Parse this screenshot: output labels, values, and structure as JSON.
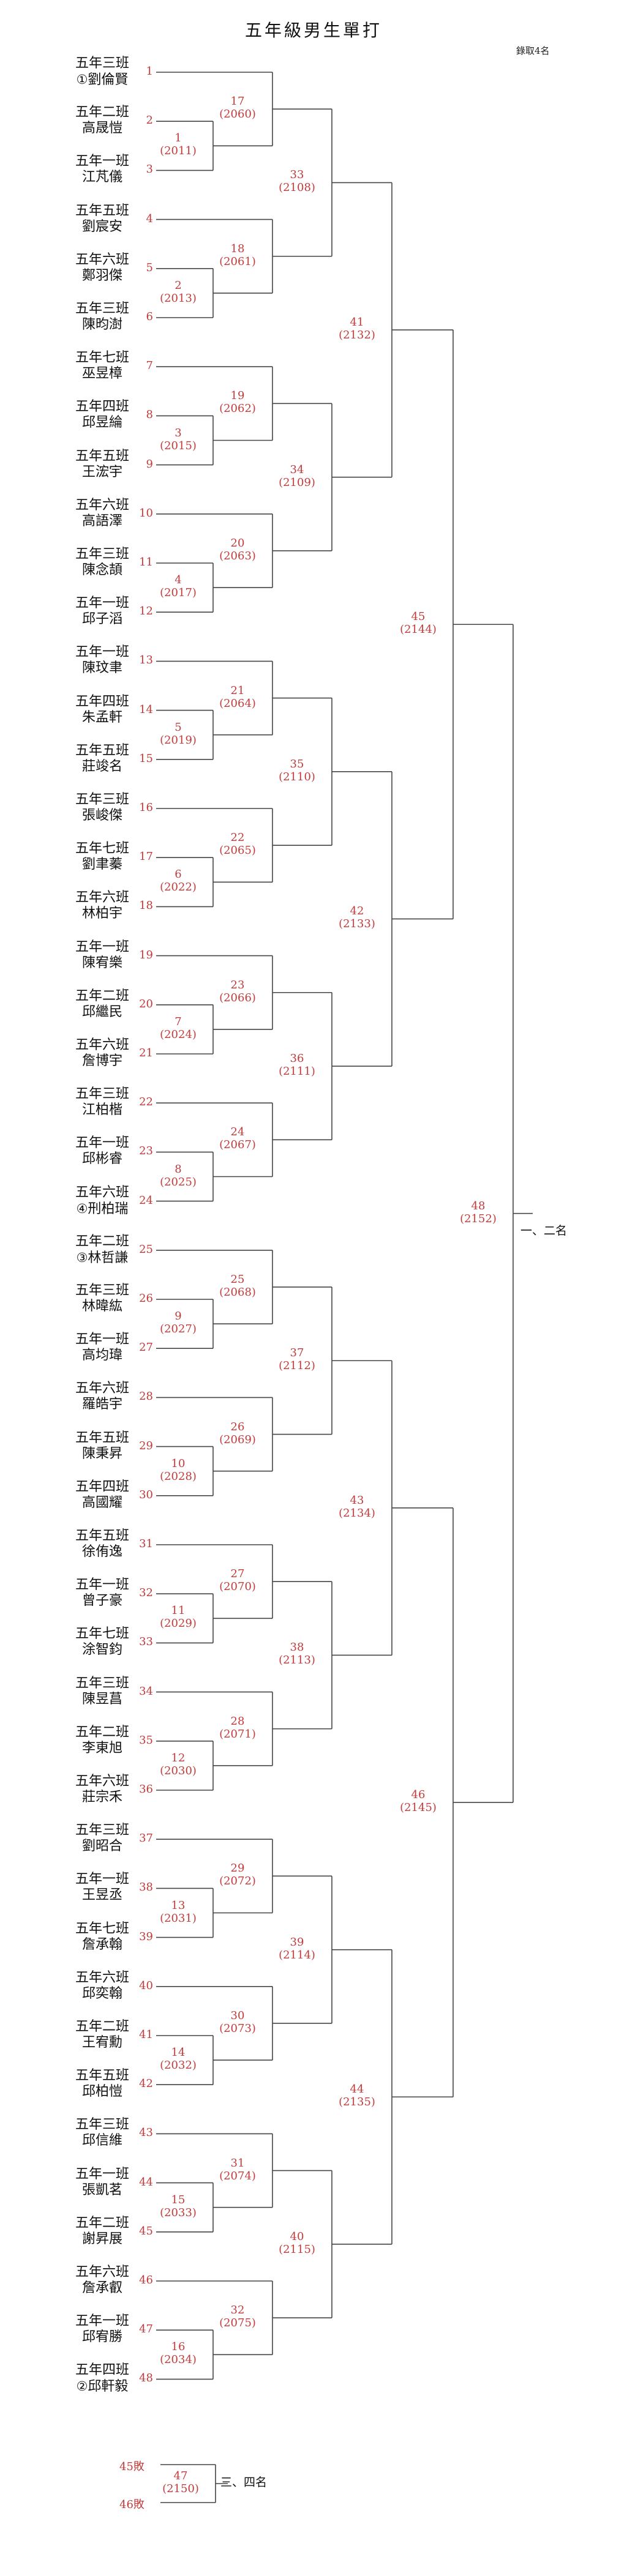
{
  "title": "五年級男生單打",
  "note": "錄取4名",
  "players": [
    {
      "class": "五年三班",
      "name": "劉倫賢",
      "seed": "①",
      "slot": "1"
    },
    {
      "class": "五年二班",
      "name": "高晟愷",
      "seed": "",
      "slot": "2"
    },
    {
      "class": "五年一班",
      "name": "江芃儀",
      "seed": "",
      "slot": "3"
    },
    {
      "class": "五年五班",
      "name": "劉宸安",
      "seed": "",
      "slot": "4"
    },
    {
      "class": "五年六班",
      "name": "鄭羽傑",
      "seed": "",
      "slot": "5"
    },
    {
      "class": "五年三班",
      "name": "陳昀澍",
      "seed": "",
      "slot": "6"
    },
    {
      "class": "五年七班",
      "name": "巫昱樟",
      "seed": "",
      "slot": "7"
    },
    {
      "class": "五年四班",
      "name": "邱昱綸",
      "seed": "",
      "slot": "8"
    },
    {
      "class": "五年五班",
      "name": "王浤宇",
      "seed": "",
      "slot": "9"
    },
    {
      "class": "五年六班",
      "name": "高語澤",
      "seed": "",
      "slot": "10"
    },
    {
      "class": "五年三班",
      "name": "陳念頡",
      "seed": "",
      "slot": "11"
    },
    {
      "class": "五年一班",
      "name": "邱子滔",
      "seed": "",
      "slot": "12"
    },
    {
      "class": "五年一班",
      "name": "陳玟聿",
      "seed": "",
      "slot": "13"
    },
    {
      "class": "五年四班",
      "name": "朱孟軒",
      "seed": "",
      "slot": "14"
    },
    {
      "class": "五年五班",
      "name": "莊竣名",
      "seed": "",
      "slot": "15"
    },
    {
      "class": "五年三班",
      "name": "張峻傑",
      "seed": "",
      "slot": "16"
    },
    {
      "class": "五年七班",
      "name": "劉聿蓁",
      "seed": "",
      "slot": "17"
    },
    {
      "class": "五年六班",
      "name": "林柏宇",
      "seed": "",
      "slot": "18"
    },
    {
      "class": "五年一班",
      "name": "陳宥樂",
      "seed": "",
      "slot": "19"
    },
    {
      "class": "五年二班",
      "name": "邱繼民",
      "seed": "",
      "slot": "20"
    },
    {
      "class": "五年六班",
      "name": "詹博宇",
      "seed": "",
      "slot": "21"
    },
    {
      "class": "五年三班",
      "name": "江柏楷",
      "seed": "",
      "slot": "22"
    },
    {
      "class": "五年一班",
      "name": "邱彬睿",
      "seed": "",
      "slot": "23"
    },
    {
      "class": "五年六班",
      "name": "刑柏瑞",
      "seed": "④",
      "slot": "24"
    },
    {
      "class": "五年二班",
      "name": "林哲謙",
      "seed": "③",
      "slot": "25"
    },
    {
      "class": "五年三班",
      "name": "林暐紘",
      "seed": "",
      "slot": "26"
    },
    {
      "class": "五年一班",
      "name": "高均瑋",
      "seed": "",
      "slot": "27"
    },
    {
      "class": "五年六班",
      "name": "羅皓宇",
      "seed": "",
      "slot": "28"
    },
    {
      "class": "五年五班",
      "name": "陳秉昇",
      "seed": "",
      "slot": "29"
    },
    {
      "class": "五年四班",
      "name": "高國耀",
      "seed": "",
      "slot": "30"
    },
    {
      "class": "五年五班",
      "name": "徐侑逸",
      "seed": "",
      "slot": "31"
    },
    {
      "class": "五年一班",
      "name": "曾子豪",
      "seed": "",
      "slot": "32"
    },
    {
      "class": "五年七班",
      "name": "涂智鈞",
      "seed": "",
      "slot": "33"
    },
    {
      "class": "五年三班",
      "name": "陳昱菖",
      "seed": "",
      "slot": "34"
    },
    {
      "class": "五年二班",
      "name": "李東旭",
      "seed": "",
      "slot": "35"
    },
    {
      "class": "五年六班",
      "name": "莊宗禾",
      "seed": "",
      "slot": "36"
    },
    {
      "class": "五年三班",
      "name": "劉昭合",
      "seed": "",
      "slot": "37"
    },
    {
      "class": "五年一班",
      "name": "王昱丞",
      "seed": "",
      "slot": "38"
    },
    {
      "class": "五年七班",
      "name": "詹承翰",
      "seed": "",
      "slot": "39"
    },
    {
      "class": "五年六班",
      "name": "邱奕翰",
      "seed": "",
      "slot": "40"
    },
    {
      "class": "五年二班",
      "name": "王宥勳",
      "seed": "",
      "slot": "41"
    },
    {
      "class": "五年五班",
      "name": "邱柏愷",
      "seed": "",
      "slot": "42"
    },
    {
      "class": "五年三班",
      "name": "邱信維",
      "seed": "",
      "slot": "43"
    },
    {
      "class": "五年一班",
      "name": "張凱茗",
      "seed": "",
      "slot": "44"
    },
    {
      "class": "五年二班",
      "name": "謝昇展",
      "seed": "",
      "slot": "45"
    },
    {
      "class": "五年六班",
      "name": "詹承叡",
      "seed": "",
      "slot": "46"
    },
    {
      "class": "五年一班",
      "name": "邱宥勝",
      "seed": "",
      "slot": "47"
    },
    {
      "class": "五年四班",
      "name": "邱軒毅",
      "seed": "②",
      "slot": "48"
    }
  ],
  "matches": [
    {
      "num": "1",
      "code": "(2011)"
    },
    {
      "num": "2",
      "code": "(2013)"
    },
    {
      "num": "3",
      "code": "(2015)"
    },
    {
      "num": "4",
      "code": "(2017)"
    },
    {
      "num": "5",
      "code": "(2019)"
    },
    {
      "num": "6",
      "code": "(2022)"
    },
    {
      "num": "7",
      "code": "(2024)"
    },
    {
      "num": "8",
      "code": "(2025)"
    },
    {
      "num": "9",
      "code": "(2027)"
    },
    {
      "num": "10",
      "code": "(2028)"
    },
    {
      "num": "11",
      "code": "(2029)"
    },
    {
      "num": "12",
      "code": "(2030)"
    },
    {
      "num": "13",
      "code": "(2031)"
    },
    {
      "num": "14",
      "code": "(2032)"
    },
    {
      "num": "15",
      "code": "(2033)"
    },
    {
      "num": "16",
      "code": "(2034)"
    },
    {
      "num": "17",
      "code": "(2060)"
    },
    {
      "num": "18",
      "code": "(2061)"
    },
    {
      "num": "19",
      "code": "(2062)"
    },
    {
      "num": "20",
      "code": "(2063)"
    },
    {
      "num": "21",
      "code": "(2064)"
    },
    {
      "num": "22",
      "code": "(2065)"
    },
    {
      "num": "23",
      "code": "(2066)"
    },
    {
      "num": "24",
      "code": "(2067)"
    },
    {
      "num": "25",
      "code": "(2068)"
    },
    {
      "num": "26",
      "code": "(2069)"
    },
    {
      "num": "27",
      "code": "(2070)"
    },
    {
      "num": "28",
      "code": "(2071)"
    },
    {
      "num": "29",
      "code": "(2072)"
    },
    {
      "num": "30",
      "code": "(2073)"
    },
    {
      "num": "31",
      "code": "(2074)"
    },
    {
      "num": "32",
      "code": "(2075)"
    },
    {
      "num": "33",
      "code": "(2108)"
    },
    {
      "num": "34",
      "code": "(2109)"
    },
    {
      "num": "35",
      "code": "(2110)"
    },
    {
      "num": "36",
      "code": "(2111)"
    },
    {
      "num": "37",
      "code": "(2112)"
    },
    {
      "num": "38",
      "code": "(2113)"
    },
    {
      "num": "39",
      "code": "(2114)"
    },
    {
      "num": "40",
      "code": "(2115)"
    },
    {
      "num": "41",
      "code": "(2132)"
    },
    {
      "num": "42",
      "code": "(2133)"
    },
    {
      "num": "43",
      "code": "(2134)"
    },
    {
      "num": "44",
      "code": "(2135)"
    },
    {
      "num": "45",
      "code": "(2144)"
    },
    {
      "num": "46",
      "code": "(2145)"
    },
    {
      "num": "48",
      "code": "(2152)"
    },
    {
      "num": "47",
      "code": "(2150)"
    }
  ],
  "final_label": "一、二名",
  "third_place": {
    "top": "45敗",
    "bottom": "46敗",
    "label": "三、四名"
  }
}
